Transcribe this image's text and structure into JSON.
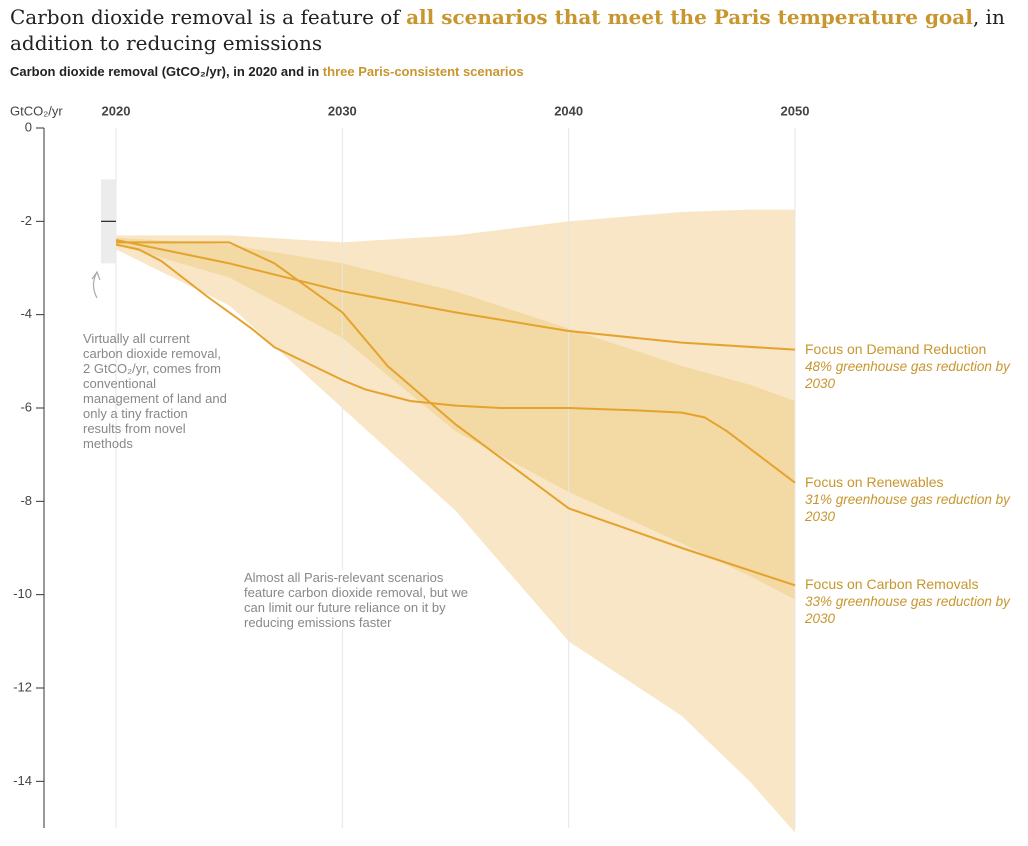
{
  "chart_data": {
    "type": "line",
    "title": [
      "Carbon dioxide removal is a feature of ",
      "all scenarios that meet the Paris temperature goal",
      ", in addition to reducing emissions"
    ],
    "subtitle": [
      "Carbon dioxide removal (GtCO₂/yr), in 2020 and in ",
      "three Paris-consistent scenarios"
    ],
    "y_label": "GtCO₂/yr",
    "xlim": [
      2020,
      2050
    ],
    "xticks": [
      2020,
      2030,
      2040,
      2050
    ],
    "ylim": [
      -15,
      0
    ],
    "yticks": [
      0,
      -2,
      -4,
      -6,
      -8,
      -10,
      -12,
      -14
    ],
    "grid": true,
    "bands": [
      {
        "color": "#f8e6c6",
        "x": [
          2020,
          2025,
          2030,
          2035,
          2040,
          2045,
          2048,
          2050
        ],
        "upper": [
          -2.3,
          -2.3,
          -2.45,
          -2.3,
          -2.0,
          -1.8,
          -1.75,
          -1.75
        ],
        "lower": [
          -2.6,
          -3.8,
          -6.0,
          -8.2,
          -11.0,
          -12.6,
          -14.0,
          -15.1
        ]
      },
      {
        "color": "#f3d9a4",
        "x": [
          2020,
          2025,
          2030,
          2035,
          2040,
          2045,
          2048,
          2050
        ],
        "upper": [
          -2.35,
          -2.5,
          -2.9,
          -3.5,
          -4.3,
          -5.1,
          -5.5,
          -5.85
        ],
        "lower": [
          -2.5,
          -3.2,
          -4.5,
          -6.5,
          -7.8,
          -8.9,
          -9.6,
          -10.1
        ]
      }
    ],
    "current": {
      "x": 2020,
      "low": -2.9,
      "high": -1.1,
      "value": -2,
      "annotation": "Virtually all current carbon dioxide removal, 2 GtCO₂/yr, comes from conventional management of land and only a tiny fraction results from novel methods"
    },
    "annotation": "Almost all Paris-relevant scenarios feature carbon dioxide removal, but we can limit our future reliance on it by reducing emissions faster",
    "series": [
      {
        "name": "Focus on Demand Reduction",
        "note": "48% greenhouse gas reduction by 2030",
        "color": "#e5a32d",
        "x": [
          2020,
          2025,
          2030,
          2035,
          2040,
          2045,
          2050
        ],
        "values": [
          -2.4,
          -2.9,
          -3.5,
          -3.95,
          -4.35,
          -4.6,
          -4.75
        ]
      },
      {
        "name": "Focus on Renewables",
        "note": "31% greenhouse gas reduction by 2030",
        "color": "#e5a32d",
        "x": [
          2020,
          2021,
          2022,
          2024,
          2026,
          2027,
          2030,
          2031,
          2033,
          2035,
          2037,
          2040,
          2043,
          2045,
          2046,
          2047,
          2050
        ],
        "values": [
          -2.5,
          -2.6,
          -2.85,
          -3.6,
          -4.3,
          -4.7,
          -5.4,
          -5.6,
          -5.85,
          -5.95,
          -6.0,
          -6.0,
          -6.05,
          -6.1,
          -6.2,
          -6.5,
          -7.6
        ]
      },
      {
        "name": "Focus on Carbon Removals",
        "note": "33% greenhouse gas reduction by 2030",
        "color": "#e5a32d",
        "x": [
          2020,
          2025,
          2027,
          2030,
          2032,
          2035,
          2040,
          2045,
          2050
        ],
        "values": [
          -2.45,
          -2.45,
          -2.9,
          -3.95,
          -5.1,
          -6.35,
          -8.15,
          -9.0,
          -9.8
        ]
      }
    ]
  }
}
